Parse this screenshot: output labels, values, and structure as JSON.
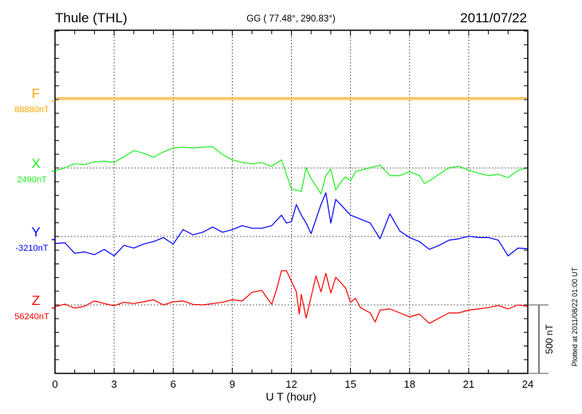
{
  "chart_data": {
    "type": "line",
    "title": "Thule (THL)",
    "subtitle": "GG ( 77.48°, 290.83°)",
    "date": "2011/07/22",
    "xlabel": "U T (hour)",
    "xlim": [
      0,
      24
    ],
    "xticks": [
      "0",
      "3",
      "6",
      "9",
      "12",
      "15",
      "18",
      "21",
      "24"
    ],
    "scale_bar_label": "500 nT",
    "scale_bar_nT": 500,
    "plotted_at": "Plotted at 2011/08/22 01:00 UT",
    "grid": true,
    "series": [
      {
        "name": "F",
        "baseline_label": "88880nT",
        "color": "#ffa500",
        "x": [
          0,
          24
        ],
        "values": [
          0,
          0
        ]
      },
      {
        "name": "X",
        "baseline_label": "2490nT",
        "color": "#22ee22",
        "x": [
          0,
          0.5,
          1,
          1.5,
          2,
          2.5,
          3,
          3.5,
          4,
          4.5,
          5,
          5.5,
          6,
          6.5,
          7,
          7.5,
          8,
          8.5,
          9,
          9.5,
          10,
          10.5,
          11,
          11.5,
          12,
          12.25,
          12.5,
          12.75,
          13,
          13.5,
          13.75,
          14,
          14.25,
          14.5,
          14.75,
          15,
          15.25,
          15.5,
          16,
          16.5,
          17,
          17.5,
          18,
          18.5,
          18.75,
          19,
          19.5,
          20,
          20.5,
          21,
          21.5,
          22,
          22.5,
          23,
          23.5,
          24
        ],
        "values": [
          -21,
          2,
          31,
          25,
          44,
          50,
          40,
          83,
          127,
          108,
          79,
          117,
          146,
          152,
          146,
          152,
          156,
          98,
          60,
          40,
          31,
          40,
          12,
          60,
          -152,
          -161,
          -171,
          2,
          -75,
          -190,
          -56,
          -8,
          -161,
          -104,
          -65,
          -94,
          -27,
          -17,
          2,
          21,
          -56,
          -56,
          -27,
          -56,
          -113,
          -94,
          -46,
          2,
          12,
          -17,
          -37,
          -56,
          -46,
          -71,
          -17,
          2
        ]
      },
      {
        "name": "Y",
        "baseline_label": "-3210nT",
        "color": "#0000ff",
        "x": [
          0,
          0.5,
          1,
          1.5,
          2,
          2.5,
          3,
          3.5,
          4,
          4.5,
          5,
          5.5,
          6,
          6.5,
          7,
          7.5,
          8,
          8.5,
          9,
          9.5,
          10,
          10.5,
          11,
          11.5,
          11.75,
          12,
          12.25,
          12.5,
          12.75,
          13,
          13.5,
          13.75,
          14,
          14.25,
          14.5,
          15,
          15.5,
          16,
          16.5,
          17,
          17.5,
          18,
          18.5,
          19,
          19.5,
          20,
          20.5,
          21,
          21.5,
          22,
          22.5,
          23,
          23.5,
          24
        ],
        "values": [
          -52,
          -46,
          -123,
          -113,
          -133,
          -94,
          -142,
          -65,
          -85,
          -56,
          -37,
          -8,
          -56,
          50,
          12,
          31,
          69,
          31,
          50,
          79,
          60,
          60,
          79,
          156,
          98,
          108,
          233,
          156,
          98,
          21,
          233,
          319,
          98,
          271,
          233,
          156,
          127,
          98,
          -17,
          165,
          40,
          -8,
          -37,
          -94,
          -65,
          -27,
          -17,
          2,
          -8,
          -8,
          -27,
          -142,
          -85,
          -90
        ]
      },
      {
        "name": "Z",
        "baseline_label": "56240nT",
        "color": "#ff0000",
        "x": [
          0,
          0.5,
          1,
          1.5,
          2,
          2.5,
          3,
          3.5,
          4,
          4.5,
          5,
          5.5,
          6,
          6.5,
          7,
          7.5,
          8,
          8.5,
          9,
          9.5,
          10,
          10.5,
          11,
          11.25,
          11.5,
          11.75,
          12,
          12.25,
          12.4,
          12.5,
          12.75,
          13,
          13.25,
          13.5,
          13.75,
          14,
          14.25,
          14.5,
          14.75,
          15,
          15.25,
          15.5,
          16,
          16.25,
          16.5,
          17,
          17.5,
          18,
          18.5,
          19,
          19.5,
          20,
          20.5,
          21,
          21.5,
          22,
          22.5,
          23,
          23.5,
          24
        ],
        "values": [
          -13,
          6,
          -23,
          -10,
          29,
          10,
          -6,
          19,
          10,
          23,
          38,
          0,
          23,
          29,
          4,
          0,
          10,
          19,
          38,
          29,
          92,
          106,
          4,
          115,
          250,
          250,
          173,
          96,
          -67,
          77,
          -96,
          58,
          212,
          96,
          231,
          87,
          202,
          163,
          125,
          19,
          48,
          -19,
          -58,
          -125,
          -38,
          -29,
          -58,
          -87,
          -67,
          -135,
          -96,
          -58,
          -58,
          -38,
          -29,
          -19,
          -4,
          -29,
          0,
          -10
        ]
      }
    ]
  }
}
